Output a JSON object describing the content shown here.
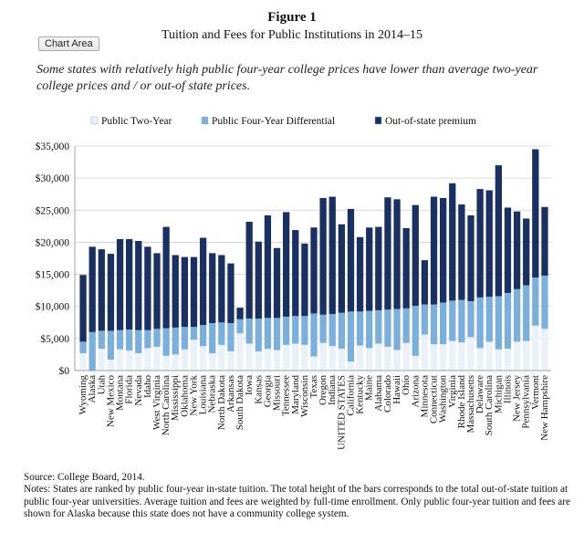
{
  "figure_label": "Figure 1",
  "title": "Tuition and Fees for Public Institutions in 2014–15",
  "chart_area_button": "Chart Area",
  "subtitle": "Some states with relatively high public four-year college prices have lower than average two-year college prices and / or out-of state prices.",
  "source": "Source: College Board, 2014.",
  "notes": "Notes: States are ranked by public four-year in-state tuition. The total height of the bars corresponds to the total out-of-state tuition at public four-year universities. Average tuition and fees are weighted by full-time enrollment. Only public four-year tuition and fees are shown for Alaska because this state does not have a community college system.",
  "colors": {
    "two_year": "#eaf1f8",
    "differential": "#7cb0da",
    "premium": "#1a3060",
    "grid": "#cfcfcf"
  },
  "chart_data": {
    "type": "bar",
    "stacked": true,
    "categories": [
      "Wyoming",
      "Alaska",
      "Utah",
      "New Mexico",
      "Montana",
      "Florida",
      "Nevada",
      "Idaho",
      "West Virginia",
      "North Carolina",
      "Mississippi",
      "Oklahoma",
      "New York",
      "Louisiana",
      "Nebraska",
      "North Dakota",
      "Arkansas",
      "South Dakota",
      "Iowa",
      "Kansas",
      "Georgia",
      "Missouri",
      "Tennessee",
      "Maryland",
      "Wisconsin",
      "Texas",
      "Oregon",
      "Indiana",
      "UNITED STATES",
      "California",
      "Kentucky",
      "Maine",
      "Alabama",
      "Colorado",
      "Hawaii",
      "Ohio",
      "Arizona",
      "Minnesota",
      "Connecticut",
      "Washington",
      "Virginia",
      "Rhode Island",
      "Massachusetts",
      "Delaware",
      "South Carolina",
      "Michigan",
      "Illinois",
      "New Jersey",
      "Pennsylvania",
      "Vermont",
      "New Hampshire"
    ],
    "series": [
      {
        "name": "Public Two-Year",
        "values": [
          2700,
          0,
          3400,
          1700,
          3300,
          3100,
          2700,
          3500,
          3700,
          2300,
          2500,
          3300,
          4800,
          3800,
          2700,
          4000,
          3000,
          5800,
          4200,
          3000,
          3400,
          3200,
          4000,
          4200,
          4000,
          2200,
          4300,
          3800,
          3400,
          1400,
          3900,
          3500,
          4200,
          3700,
          3200,
          4300,
          2300,
          5600,
          4100,
          4100,
          4600,
          4400,
          5200,
          3500,
          4500,
          3300,
          3400,
          4500,
          4600,
          7000,
          6500
        ]
      },
      {
        "name": "Public Four-Year Differential",
        "values": [
          1800,
          6000,
          2800,
          4500,
          3000,
          3300,
          3600,
          2800,
          2800,
          4300,
          4200,
          3500,
          2000,
          3300,
          4700,
          3500,
          4400,
          2200,
          3900,
          5100,
          4800,
          5000,
          4400,
          4300,
          4500,
          6700,
          4400,
          5000,
          5600,
          7800,
          5300,
          5800,
          5200,
          5800,
          6400,
          5400,
          7800,
          4700,
          6200,
          6500,
          6300,
          6600,
          5600,
          7900,
          7000,
          8300,
          8700,
          8200,
          8700,
          7500,
          8300
        ]
      },
      {
        "name": "Out-of-state premium",
        "values": [
          10400,
          13300,
          12700,
          12000,
          14200,
          14100,
          13900,
          13000,
          11800,
          15800,
          11300,
          10900,
          10900,
          13600,
          10900,
          10500,
          9300,
          1800,
          15100,
          12000,
          16000,
          10900,
          16300,
          13400,
          11300,
          13400,
          18200,
          18300,
          13800,
          16000,
          11600,
          13000,
          13000,
          17500,
          17100,
          12500,
          15700,
          6900,
          16800,
          16300,
          18300,
          14900,
          13400,
          16900,
          16600,
          20400,
          13300,
          12100,
          10400,
          20000,
          10700
        ]
      }
    ],
    "ylim": [
      0,
      35000
    ],
    "yticks": [
      "$0",
      "$5,000",
      "$10,000",
      "$15,000",
      "$20,000",
      "$25,000",
      "$30,000",
      "$35,000"
    ],
    "grid": true,
    "legend_position": "top-left"
  }
}
